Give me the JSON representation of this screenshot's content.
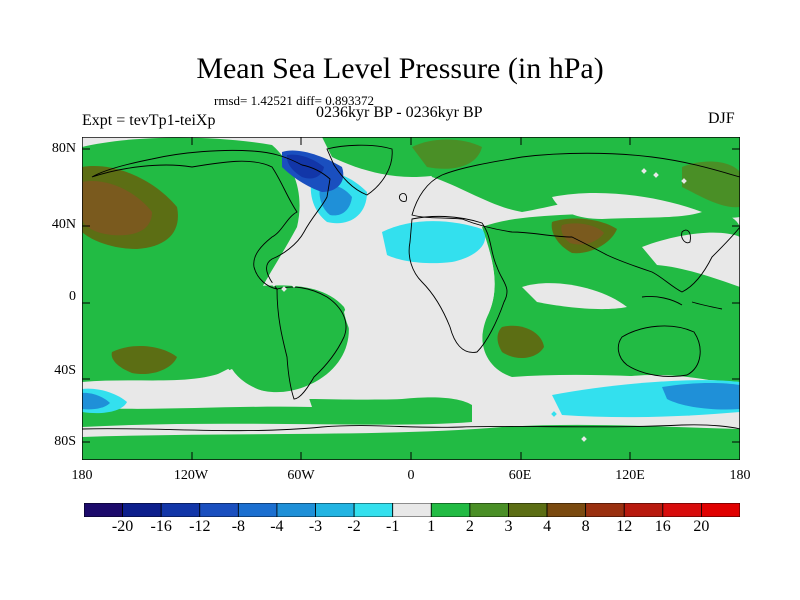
{
  "title": "Mean Sea Level Pressure (in hPa)",
  "stats": "rmsd= 1.42521 diff= 0.893372",
  "expt": "Expt = tevTp1-teiXp",
  "period": "0236kyr BP - 0236kyr BP",
  "season": "DJF",
  "lat_labels": [
    "80N",
    "40N",
    "0",
    "40S",
    "80S"
  ],
  "lon_labels": [
    "180",
    "120W",
    "60W",
    "0",
    "60E",
    "120E",
    "180"
  ],
  "colorbar": {
    "labels": [
      "-20",
      "-16",
      "-12",
      "-8",
      "-4",
      "-3",
      "-2",
      "-1",
      "1",
      "2",
      "3",
      "4",
      "8",
      "12",
      "16",
      "20"
    ],
    "colors": [
      "#1c0a6b",
      "#0d1f8c",
      "#1236a8",
      "#1a4fbf",
      "#1b6fd0",
      "#1f90d8",
      "#22b4e2",
      "#33e0ee",
      "#e8e8e8",
      "#22bb44",
      "#4a8f26",
      "#5c6e14",
      "#7a4a10",
      "#9a3010",
      "#b81a0e",
      "#d80c0c"
    ]
  },
  "palette": {
    "land_bg": "#e8e8e8",
    "green": "#22bb44",
    "olive": "#4f8a24",
    "brown": "#7a5a1e",
    "cyan": "#33e0ee",
    "sky": "#1f90d8",
    "blue": "#1a4fbf"
  }
}
